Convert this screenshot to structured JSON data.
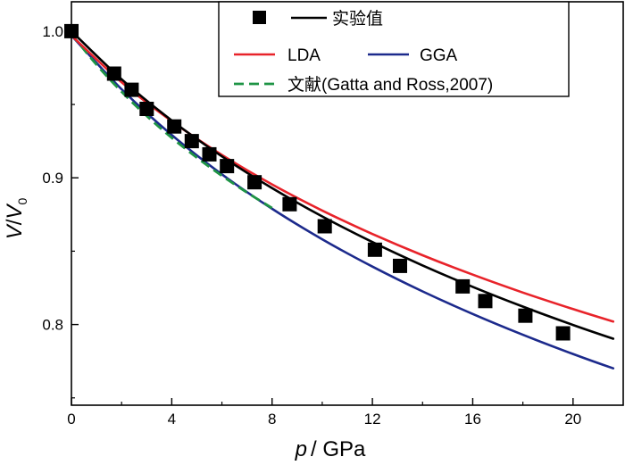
{
  "chart_data": {
    "type": "line",
    "title": "",
    "xlabel": "p / GPa",
    "xlabel_var": "p",
    "xlabel_unit": "/ GPa",
    "ylabel": "V/V0",
    "ylabel_parts": {
      "v1": "V",
      "slash": "/",
      "v2": "V",
      "sub": "0"
    },
    "xlim": [
      0,
      22
    ],
    "ylim": [
      0.745,
      1.02
    ],
    "xticks": [
      0,
      4,
      8,
      12,
      16,
      20
    ],
    "xtick_labels": [
      "0",
      "4",
      "8",
      "12",
      "16",
      "20"
    ],
    "yticks": [
      0.8,
      0.9,
      1.0
    ],
    "ytick_labels": [
      "0.8",
      "0.9",
      "1.0"
    ],
    "legend_position": "top-right",
    "series": [
      {
        "name": "实验值",
        "kind": "scatter",
        "color": "#000000",
        "x": [
          0,
          1.7,
          2.4,
          3.0,
          4.1,
          4.8,
          5.5,
          6.2,
          7.3,
          8.7,
          10.1,
          12.1,
          13.1,
          15.6,
          16.5,
          18.1,
          19.6
        ],
        "y": [
          1.0,
          0.971,
          0.96,
          0.947,
          0.935,
          0.925,
          0.916,
          0.908,
          0.897,
          0.882,
          0.867,
          0.851,
          0.84,
          0.826,
          0.816,
          0.806,
          0.794
        ]
      },
      {
        "name": "实验值",
        "kind": "line",
        "color": "#000000",
        "x": [
          0,
          2,
          4,
          6,
          8,
          10,
          12,
          14,
          16,
          18,
          20,
          21.6
        ],
        "y": [
          1.0,
          0.9672,
          0.9391,
          0.9146,
          0.893,
          0.8737,
          0.8562,
          0.8403,
          0.8257,
          0.8122,
          0.7997,
          0.7903
        ]
      },
      {
        "name": "LDA",
        "kind": "line",
        "color": "#e8232a",
        "x": [
          0,
          2,
          4,
          6,
          8,
          10,
          12,
          14,
          16,
          18,
          20,
          21.6
        ],
        "y": [
          0.997,
          0.9652,
          0.9386,
          0.9156,
          0.8955,
          0.8777,
          0.8617,
          0.8472,
          0.834,
          0.8218,
          0.8105,
          0.802
        ]
      },
      {
        "name": "GGA",
        "kind": "line",
        "color": "#1c2a8c",
        "x": [
          0,
          2,
          4,
          6,
          8,
          10,
          12,
          14,
          16,
          18,
          20,
          21.6
        ],
        "y": [
          0.997,
          0.9604,
          0.9292,
          0.9024,
          0.8789,
          0.8581,
          0.8395,
          0.8226,
          0.8072,
          0.793,
          0.7799,
          0.7701
        ]
      },
      {
        "name": "文献(Gatta and Ross,2007)",
        "kind": "line",
        "dash": "dashed",
        "color": "#1e9445",
        "x": [
          0,
          1,
          2,
          3,
          4,
          5,
          6,
          7,
          8
        ],
        "y": [
          0.998,
          0.9771,
          0.9587,
          0.9422,
          0.9273,
          0.9138,
          0.9014,
          0.89,
          0.8794
        ]
      }
    ]
  }
}
